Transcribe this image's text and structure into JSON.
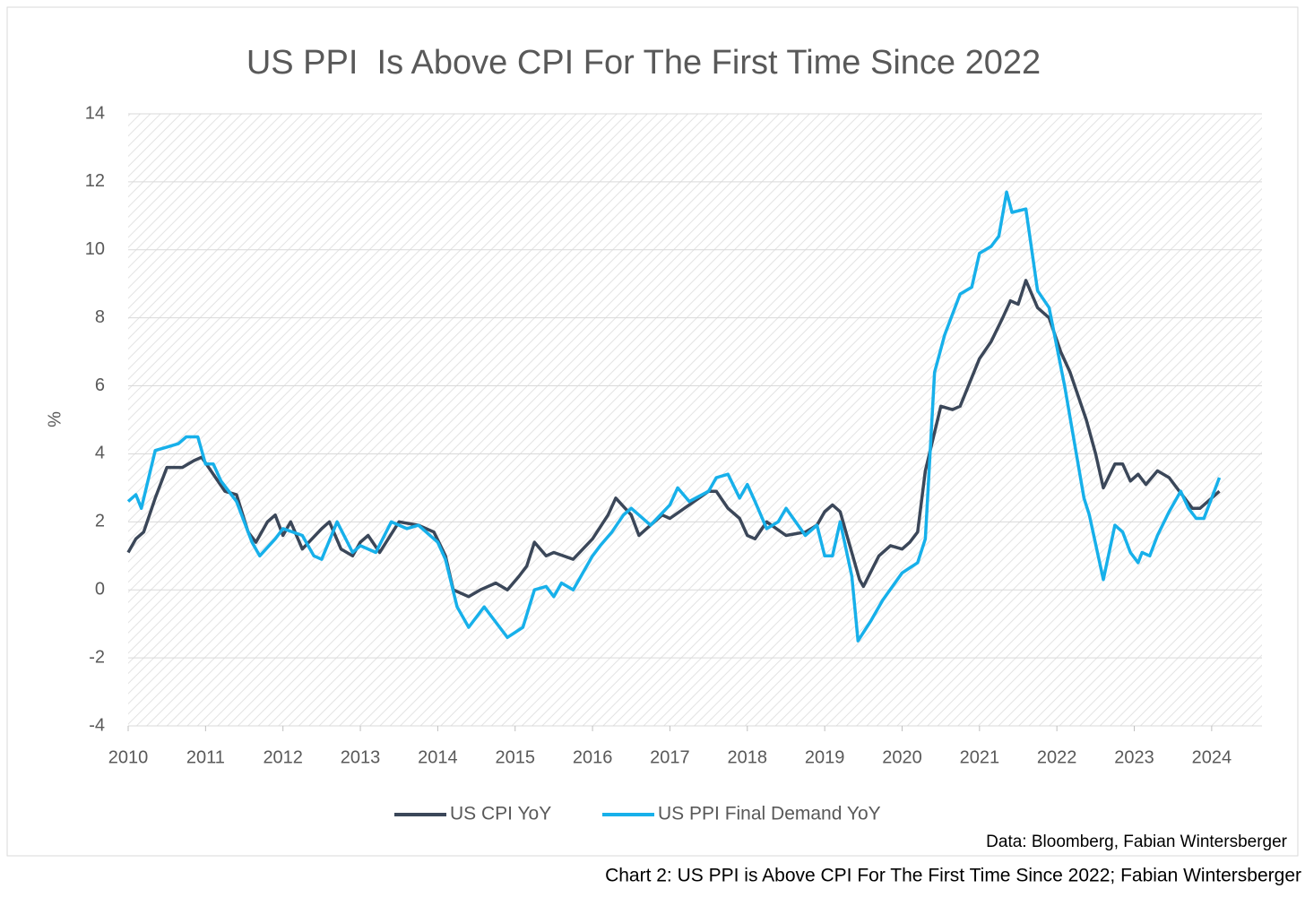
{
  "chart_data": {
    "type": "line",
    "title": "US PPI  Is Above CPI For The First Time Since 2022",
    "y_label": "%",
    "source": "Data: Bloomberg, Fabian Wintersberger",
    "caption": "Chart 2: US PPI is Above CPI For The First Time Since 2022; Fabian Wintersberger",
    "xlim": [
      2010,
      2024.65
    ],
    "xticks": [
      2010,
      2011,
      2012,
      2013,
      2014,
      2015,
      2016,
      2017,
      2018,
      2019,
      2020,
      2021,
      2022,
      2023,
      2024
    ],
    "ylim": [
      -4,
      14
    ],
    "yticks": [
      -4,
      -2,
      0,
      2,
      4,
      6,
      8,
      10,
      12,
      14
    ],
    "grid": true,
    "legend": "bottom",
    "series": [
      {
        "name": "US CPI YoY",
        "color": "#3b4759",
        "x": [
          2010.0,
          2010.1,
          2010.2,
          2010.35,
          2010.5,
          2010.7,
          2010.85,
          2010.95,
          2011.1,
          2011.25,
          2011.4,
          2011.55,
          2011.65,
          2011.8,
          2011.9,
          2012.0,
          2012.1,
          2012.25,
          2012.5,
          2012.6,
          2012.75,
          2012.9,
          2013.0,
          2013.1,
          2013.25,
          2013.5,
          2013.75,
          2013.95,
          2014.1,
          2014.2,
          2014.4,
          2014.55,
          2014.75,
          2014.9,
          2015.05,
          2015.15,
          2015.25,
          2015.4,
          2015.5,
          2015.75,
          2016.0,
          2016.2,
          2016.3,
          2016.5,
          2016.6,
          2016.75,
          2016.9,
          2017.0,
          2017.25,
          2017.5,
          2017.6,
          2017.75,
          2017.9,
          2018.0,
          2018.1,
          2018.25,
          2018.5,
          2018.75,
          2018.9,
          2019.0,
          2019.1,
          2019.2,
          2019.3,
          2019.45,
          2019.5,
          2019.7,
          2019.85,
          2020.0,
          2020.1,
          2020.2,
          2020.3,
          2020.5,
          2020.65,
          2020.75,
          2021.0,
          2021.15,
          2021.3,
          2021.4,
          2021.5,
          2021.6,
          2021.75,
          2021.9,
          2022.05,
          2022.17,
          2022.38,
          2022.5,
          2022.6,
          2022.75,
          2022.85,
          2022.95,
          2023.05,
          2023.15,
          2023.3,
          2023.45,
          2023.55,
          2023.75,
          2023.85,
          2024.0,
          2024.1
        ],
        "values": [
          1.1,
          1.5,
          1.7,
          2.7,
          3.6,
          3.6,
          3.8,
          3.9,
          3.4,
          2.9,
          2.8,
          1.7,
          1.4,
          2.0,
          2.2,
          1.6,
          2.0,
          1.2,
          1.8,
          2.0,
          1.2,
          1.0,
          1.4,
          1.6,
          1.1,
          2.0,
          1.9,
          1.7,
          1.0,
          0.0,
          -0.2,
          0.0,
          0.2,
          0.0,
          0.4,
          0.7,
          1.4,
          1.0,
          1.1,
          0.9,
          1.5,
          2.2,
          2.7,
          2.2,
          1.6,
          1.9,
          2.2,
          2.1,
          2.5,
          2.9,
          2.9,
          2.4,
          2.1,
          1.6,
          1.5,
          2.0,
          1.6,
          1.7,
          1.9,
          2.3,
          2.5,
          2.3,
          1.5,
          0.3,
          0.1,
          1.0,
          1.3,
          1.2,
          1.4,
          1.7,
          3.5,
          5.4,
          5.3,
          5.4,
          6.8,
          7.3,
          8.0,
          8.5,
          8.4,
          9.1,
          8.3,
          8.0,
          7.0,
          6.4,
          5.0,
          4.0,
          3.0,
          3.7,
          3.7,
          3.2,
          3.4,
          3.1,
          3.5,
          3.3,
          3.0,
          2.4,
          2.4,
          2.7,
          2.9
        ]
      },
      {
        "name": "US PPI Final Demand YoY",
        "color": "#17b0ea",
        "x": [
          2010.0,
          2010.1,
          2010.17,
          2010.35,
          2010.5,
          2010.65,
          2010.75,
          2010.9,
          2011.0,
          2011.1,
          2011.2,
          2011.4,
          2011.6,
          2011.7,
          2011.9,
          2012.0,
          2012.25,
          2012.4,
          2012.5,
          2012.7,
          2012.9,
          2013.0,
          2013.2,
          2013.4,
          2013.6,
          2013.75,
          2014.0,
          2014.1,
          2014.25,
          2014.4,
          2014.6,
          2014.8,
          2014.9,
          2015.1,
          2015.25,
          2015.4,
          2015.5,
          2015.6,
          2015.75,
          2016.0,
          2016.1,
          2016.25,
          2016.4,
          2016.5,
          2016.6,
          2016.75,
          2017.0,
          2017.1,
          2017.25,
          2017.5,
          2017.6,
          2017.75,
          2017.9,
          2018.0,
          2018.1,
          2018.25,
          2018.4,
          2018.5,
          2018.75,
          2018.9,
          2019.0,
          2019.1,
          2019.2,
          2019.35,
          2019.43,
          2019.6,
          2019.75,
          2020.0,
          2020.2,
          2020.3,
          2020.42,
          2020.55,
          2020.75,
          2020.9,
          2021.0,
          2021.15,
          2021.25,
          2021.35,
          2021.42,
          2021.6,
          2021.75,
          2021.9,
          2022.1,
          2022.35,
          2022.42,
          2022.6,
          2022.75,
          2022.85,
          2022.95,
          2023.05,
          2023.1,
          2023.2,
          2023.3,
          2023.45,
          2023.6,
          2023.7,
          2023.8,
          2023.9,
          2024.0,
          2024.1
        ],
        "values": [
          2.6,
          2.8,
          2.4,
          4.1,
          4.2,
          4.3,
          4.5,
          4.5,
          3.7,
          3.7,
          3.2,
          2.6,
          1.4,
          1.0,
          1.5,
          1.8,
          1.6,
          1.0,
          0.9,
          2.0,
          1.1,
          1.3,
          1.1,
          2.0,
          1.8,
          1.9,
          1.4,
          0.9,
          -0.5,
          -1.1,
          -0.5,
          -1.1,
          -1.4,
          -1.1,
          0.0,
          0.1,
          -0.2,
          0.2,
          0.0,
          1.0,
          1.3,
          1.7,
          2.2,
          2.4,
          2.2,
          1.9,
          2.5,
          3.0,
          2.6,
          2.9,
          3.3,
          3.4,
          2.7,
          3.1,
          2.6,
          1.8,
          2.0,
          2.4,
          1.6,
          1.9,
          1.0,
          1.0,
          2.0,
          0.4,
          -1.5,
          -0.9,
          -0.3,
          0.5,
          0.8,
          1.5,
          6.4,
          7.5,
          8.7,
          8.9,
          9.9,
          10.1,
          10.4,
          11.7,
          11.1,
          11.2,
          8.8,
          8.3,
          6.0,
          2.7,
          2.2,
          0.3,
          1.9,
          1.7,
          1.1,
          0.8,
          1.1,
          1.0,
          1.6,
          2.3,
          2.9,
          2.4,
          2.1,
          2.1,
          2.7,
          3.3
        ]
      }
    ]
  }
}
